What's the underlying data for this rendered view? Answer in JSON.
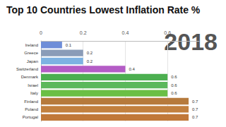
{
  "chart_data": {
    "type": "bar",
    "orientation": "horizontal",
    "title": "Top 10 Countries Lowest Inflation Rate %",
    "annotation": "2018",
    "categories": [
      "Ireland",
      "Greece",
      "Japan",
      "Switzerland",
      "Denmark",
      "Israel",
      "Italy",
      "Finland",
      "Poland",
      "Portugal"
    ],
    "values": [
      0.1,
      0.2,
      0.2,
      0.4,
      0.6,
      0.6,
      0.6,
      0.7,
      0.7,
      0.7
    ],
    "colors": [
      "#6f8ed8",
      "#8a9cb8",
      "#7db2e2",
      "#b45cc6",
      "#4caf50",
      "#5cb85c",
      "#6abf45",
      "#b67a3c",
      "#c2803e",
      "#c17838"
    ],
    "xlim": [
      0,
      0.75
    ],
    "xticks": [
      0,
      0.2,
      0.4,
      0.6
    ],
    "grid": true,
    "data_labels": true
  }
}
